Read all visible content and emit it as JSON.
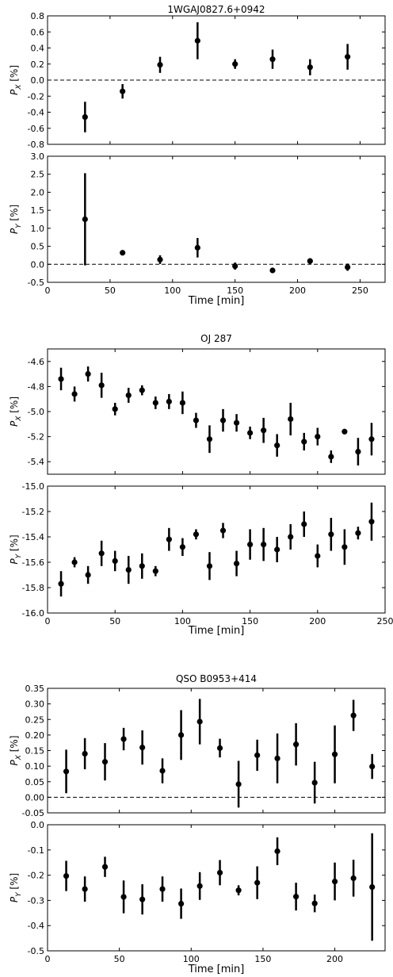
{
  "chart_data": [
    {
      "type": "scatter",
      "title": "1WGAJ0827.6+0942",
      "xlabel": "Time [min]",
      "xlim": [
        0,
        270
      ],
      "xticks": [
        0,
        50,
        100,
        150,
        200,
        250
      ],
      "panels": [
        {
          "ylabel_sym": "P",
          "ylabel_sub": "X",
          "ylabel_unit": "[%]",
          "ylim": [
            -0.8,
            0.8
          ],
          "yticks": [
            -0.8,
            -0.6,
            -0.4,
            -0.2,
            0.0,
            0.2,
            0.4,
            0.6,
            0.8
          ],
          "tick_decimals": 1,
          "zero_line": true,
          "points": [
            {
              "x": 30,
              "y": -0.46,
              "err": 0.19
            },
            {
              "x": 60,
              "y": -0.14,
              "err": 0.09
            },
            {
              "x": 90,
              "y": 0.19,
              "err": 0.1
            },
            {
              "x": 120,
              "y": 0.49,
              "err": 0.23
            },
            {
              "x": 150,
              "y": 0.2,
              "err": 0.06
            },
            {
              "x": 180,
              "y": 0.26,
              "err": 0.12
            },
            {
              "x": 210,
              "y": 0.16,
              "err": 0.1
            },
            {
              "x": 240,
              "y": 0.29,
              "err": 0.16
            }
          ]
        },
        {
          "ylabel_sym": "P",
          "ylabel_sub": "Y",
          "ylabel_unit": "[%]",
          "ylim": [
            -0.5,
            3.0
          ],
          "yticks": [
            -0.5,
            0.0,
            0.5,
            1.0,
            1.5,
            2.0,
            2.5,
            3.0
          ],
          "tick_decimals": 1,
          "zero_line": true,
          "points": [
            {
              "x": 30,
              "y": 1.25,
              "err": 1.28
            },
            {
              "x": 60,
              "y": 0.32,
              "err": 0.0
            },
            {
              "x": 90,
              "y": 0.13,
              "err": 0.12
            },
            {
              "x": 120,
              "y": 0.46,
              "err": 0.27
            },
            {
              "x": 150,
              "y": -0.05,
              "err": 0.1
            },
            {
              "x": 180,
              "y": -0.17,
              "err": 0.07
            },
            {
              "x": 210,
              "y": 0.09,
              "err": 0.08
            },
            {
              "x": 240,
              "y": -0.08,
              "err": 0.1
            }
          ]
        }
      ]
    },
    {
      "type": "scatter",
      "title": "OJ 287",
      "xlabel": "Time [min]",
      "xlim": [
        0,
        250
      ],
      "xticks": [
        0,
        50,
        100,
        150,
        200,
        250
      ],
      "panels": [
        {
          "ylabel_sym": "P",
          "ylabel_sub": "X",
          "ylabel_unit": "[%]",
          "ylim": [
            -5.5,
            -4.5
          ],
          "yticks": [
            -5.4,
            -5.2,
            -5.0,
            -4.8,
            -4.6
          ],
          "tick_decimals": 1,
          "zero_line": false,
          "points": [
            {
              "x": 10,
              "y": -4.74,
              "err": 0.09
            },
            {
              "x": 20,
              "y": -4.86,
              "err": 0.06
            },
            {
              "x": 30,
              "y": -4.7,
              "err": 0.06
            },
            {
              "x": 40,
              "y": -4.79,
              "err": 0.1
            },
            {
              "x": 50,
              "y": -4.98,
              "err": 0.05
            },
            {
              "x": 60,
              "y": -4.87,
              "err": 0.06
            },
            {
              "x": 70,
              "y": -4.83,
              "err": 0.04
            },
            {
              "x": 80,
              "y": -4.93,
              "err": 0.05
            },
            {
              "x": 90,
              "y": -4.92,
              "err": 0.06
            },
            {
              "x": 100,
              "y": -4.93,
              "err": 0.09
            },
            {
              "x": 110,
              "y": -5.07,
              "err": 0.06
            },
            {
              "x": 120,
              "y": -5.22,
              "err": 0.11
            },
            {
              "x": 130,
              "y": -5.07,
              "err": 0.09
            },
            {
              "x": 140,
              "y": -5.09,
              "err": 0.07
            },
            {
              "x": 150,
              "y": -5.17,
              "err": 0.05
            },
            {
              "x": 160,
              "y": -5.15,
              "err": 0.1
            },
            {
              "x": 170,
              "y": -5.27,
              "err": 0.09
            },
            {
              "x": 180,
              "y": -5.06,
              "err": 0.13
            },
            {
              "x": 190,
              "y": -5.24,
              "err": 0.07
            },
            {
              "x": 200,
              "y": -5.2,
              "err": 0.07
            },
            {
              "x": 210,
              "y": -5.36,
              "err": 0.05
            },
            {
              "x": 220,
              "y": -5.16,
              "err": 0.02
            },
            {
              "x": 230,
              "y": -5.32,
              "err": 0.11
            },
            {
              "x": 240,
              "y": -5.22,
              "err": 0.13
            }
          ]
        },
        {
          "ylabel_sym": "P",
          "ylabel_sub": "Y",
          "ylabel_unit": "[%]",
          "ylim": [
            -16.0,
            -15.0
          ],
          "yticks": [
            -16.0,
            -15.8,
            -15.6,
            -15.4,
            -15.2,
            -15.0
          ],
          "tick_decimals": 1,
          "zero_line": false,
          "points": [
            {
              "x": 10,
              "y": -15.77,
              "err": 0.1
            },
            {
              "x": 20,
              "y": -15.6,
              "err": 0.04
            },
            {
              "x": 30,
              "y": -15.7,
              "err": 0.07
            },
            {
              "x": 40,
              "y": -15.53,
              "err": 0.1
            },
            {
              "x": 50,
              "y": -15.59,
              "err": 0.08
            },
            {
              "x": 60,
              "y": -15.66,
              "err": 0.11
            },
            {
              "x": 70,
              "y": -15.63,
              "err": 0.1
            },
            {
              "x": 80,
              "y": -15.67,
              "err": 0.04
            },
            {
              "x": 90,
              "y": -15.42,
              "err": 0.09
            },
            {
              "x": 100,
              "y": -15.48,
              "err": 0.07
            },
            {
              "x": 110,
              "y": -15.38,
              "err": 0.04
            },
            {
              "x": 120,
              "y": -15.63,
              "err": 0.11
            },
            {
              "x": 130,
              "y": -15.35,
              "err": 0.06
            },
            {
              "x": 140,
              "y": -15.61,
              "err": 0.1
            },
            {
              "x": 150,
              "y": -15.46,
              "err": 0.12
            },
            {
              "x": 160,
              "y": -15.46,
              "err": 0.13
            },
            {
              "x": 170,
              "y": -15.5,
              "err": 0.1
            },
            {
              "x": 180,
              "y": -15.4,
              "err": 0.1
            },
            {
              "x": 190,
              "y": -15.3,
              "err": 0.1
            },
            {
              "x": 200,
              "y": -15.55,
              "err": 0.09
            },
            {
              "x": 210,
              "y": -15.38,
              "err": 0.13
            },
            {
              "x": 220,
              "y": -15.48,
              "err": 0.14
            },
            {
              "x": 230,
              "y": -15.37,
              "err": 0.05
            },
            {
              "x": 240,
              "y": -15.28,
              "err": 0.15
            }
          ]
        }
      ]
    },
    {
      "type": "scatter",
      "title": "QSO B0953+414",
      "xlabel": "Time [min]",
      "xlim": [
        0,
        235
      ],
      "xticks": [
        0,
        50,
        100,
        150,
        200
      ],
      "panels": [
        {
          "ylabel_sym": "P",
          "ylabel_sub": "X",
          "ylabel_unit": "[%]",
          "ylim": [
            -0.05,
            0.35
          ],
          "yticks": [
            -0.05,
            0.0,
            0.05,
            0.1,
            0.15,
            0.2,
            0.25,
            0.3,
            0.35
          ],
          "tick_decimals": 2,
          "zero_line": true,
          "points": [
            {
              "x": 13,
              "y": 0.083,
              "err": 0.07
            },
            {
              "x": 26,
              "y": 0.14,
              "err": 0.05
            },
            {
              "x": 40,
              "y": 0.114,
              "err": 0.06
            },
            {
              "x": 53,
              "y": 0.187,
              "err": 0.036
            },
            {
              "x": 66,
              "y": 0.16,
              "err": 0.055
            },
            {
              "x": 80,
              "y": 0.085,
              "err": 0.04
            },
            {
              "x": 93,
              "y": 0.2,
              "err": 0.08
            },
            {
              "x": 106,
              "y": 0.243,
              "err": 0.073
            },
            {
              "x": 120,
              "y": 0.158,
              "err": 0.03
            },
            {
              "x": 133,
              "y": 0.042,
              "err": 0.075
            },
            {
              "x": 146,
              "y": 0.135,
              "err": 0.05
            },
            {
              "x": 160,
              "y": 0.125,
              "err": 0.08
            },
            {
              "x": 173,
              "y": 0.17,
              "err": 0.068
            },
            {
              "x": 186,
              "y": 0.047,
              "err": 0.067
            },
            {
              "x": 200,
              "y": 0.138,
              "err": 0.093
            },
            {
              "x": 213,
              "y": 0.263,
              "err": 0.05
            },
            {
              "x": 226,
              "y": 0.099,
              "err": 0.04
            }
          ]
        },
        {
          "ylabel_sym": "P",
          "ylabel_sub": "Y",
          "ylabel_unit": "[%]",
          "ylim": [
            -0.5,
            0.0
          ],
          "yticks": [
            -0.5,
            -0.4,
            -0.3,
            -0.2,
            -0.1,
            0.0
          ],
          "tick_decimals": 1,
          "zero_line": true,
          "points": [
            {
              "x": 13,
              "y": -0.203,
              "err": 0.06
            },
            {
              "x": 26,
              "y": -0.255,
              "err": 0.05
            },
            {
              "x": 40,
              "y": -0.167,
              "err": 0.04
            },
            {
              "x": 53,
              "y": -0.286,
              "err": 0.065
            },
            {
              "x": 66,
              "y": -0.296,
              "err": 0.06
            },
            {
              "x": 80,
              "y": -0.255,
              "err": 0.05
            },
            {
              "x": 93,
              "y": -0.313,
              "err": 0.06
            },
            {
              "x": 106,
              "y": -0.243,
              "err": 0.055
            },
            {
              "x": 120,
              "y": -0.19,
              "err": 0.05
            },
            {
              "x": 133,
              "y": -0.26,
              "err": 0.02
            },
            {
              "x": 146,
              "y": -0.23,
              "err": 0.065
            },
            {
              "x": 160,
              "y": -0.105,
              "err": 0.055
            },
            {
              "x": 173,
              "y": -0.285,
              "err": 0.055
            },
            {
              "x": 186,
              "y": -0.312,
              "err": 0.035
            },
            {
              "x": 200,
              "y": -0.225,
              "err": 0.075
            },
            {
              "x": 213,
              "y": -0.212,
              "err": 0.073
            },
            {
              "x": 226,
              "y": -0.247,
              "err": 0.213
            }
          ]
        }
      ]
    }
  ]
}
